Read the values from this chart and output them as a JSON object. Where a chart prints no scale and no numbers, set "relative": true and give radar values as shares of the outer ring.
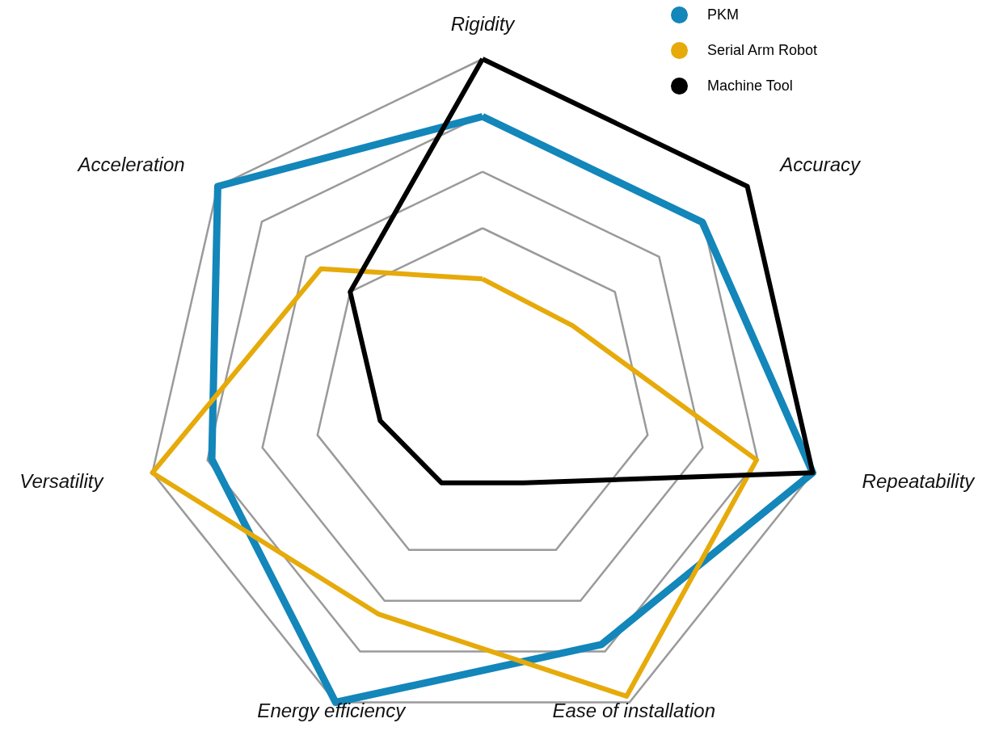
{
  "chart_data": {
    "type": "radar",
    "relative": true,
    "categories": [
      "Rigidity",
      "Accuracy",
      "Repeatability",
      "Ease of installation",
      "Energy efficiency",
      "Versatility",
      "Acceleration"
    ],
    "series": [
      {
        "name": "PKM",
        "color": "#1386ba",
        "values": [
          0.83,
          0.83,
          1.0,
          0.81,
          1.0,
          0.82,
          1.0
        ]
      },
      {
        "name": "Serial Arm Robot",
        "color": "#e6aa0a",
        "values": [
          0.35,
          0.34,
          0.83,
          0.98,
          0.71,
          1.0,
          0.61
        ]
      },
      {
        "name": "Machine Tool",
        "color": "#000000",
        "values": [
          1.0,
          1.0,
          1.0,
          0.28,
          0.28,
          0.31,
          0.5
        ]
      }
    ],
    "grid": true,
    "legend": "top right",
    "marker": "none",
    "line_style": "solid"
  }
}
